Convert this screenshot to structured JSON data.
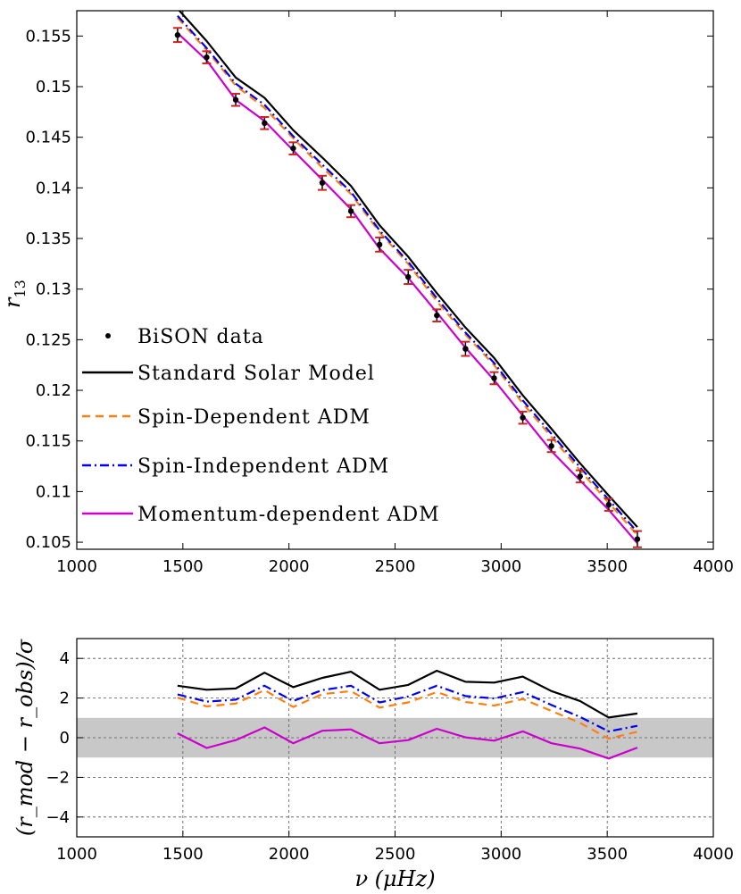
{
  "chart_data": [
    {
      "type": "line",
      "title": "",
      "xlabel": "",
      "ylabel": "r",
      "ylabel_sub": "13",
      "xlim": [
        1000,
        4000
      ],
      "ylim": [
        0.1043,
        0.1575
      ],
      "xticks": [
        1000,
        1500,
        2000,
        2500,
        3000,
        3500,
        4000
      ],
      "xtick_labels": [
        "1000",
        "1500",
        "2000",
        "2500",
        "3000",
        "3500",
        "4000"
      ],
      "yticks": [
        0.105,
        0.11,
        0.115,
        0.12,
        0.125,
        0.13,
        0.135,
        0.14,
        0.145,
        0.15,
        0.155
      ],
      "ytick_labels": [
        "0.105",
        "0.11",
        "0.115",
        "0.12",
        "0.125",
        "0.13",
        "0.135",
        "0.14",
        "0.145",
        "0.15",
        "0.155"
      ],
      "grid": false,
      "legend_position": "lower-left",
      "x": [
        1475,
        1612,
        1749,
        1885,
        2020,
        2157,
        2292,
        2427,
        2562,
        2697,
        2832,
        2967,
        3102,
        3237,
        3372,
        3507,
        3642
      ],
      "observations": {
        "name": "BiSON data",
        "color": "#000000",
        "error_bar_color": "#cc2222",
        "values": [
          0.1551,
          0.1529,
          0.1487,
          0.1464,
          0.1439,
          0.1405,
          0.1377,
          0.1344,
          0.1312,
          0.1274,
          0.1241,
          0.1212,
          0.1173,
          0.1145,
          0.1115,
          0.1087,
          0.1053
        ],
        "errors": [
          0.0007,
          0.0006,
          0.0006,
          0.0006,
          0.0006,
          0.0007,
          0.0006,
          0.0007,
          0.0007,
          0.0006,
          0.0007,
          0.0006,
          0.0006,
          0.0006,
          0.0006,
          0.0006,
          0.0008
        ]
      },
      "series": [
        {
          "name": "Standard Solar Model",
          "color": "#000000",
          "dash": "solid",
          "values": [
            0.1577,
            0.1545,
            0.1509,
            0.1489,
            0.1457,
            0.143,
            0.1402,
            0.1363,
            0.1332,
            0.1296,
            0.1262,
            0.1232,
            0.1195,
            0.1162,
            0.1128,
            0.1096,
            0.1065
          ]
        },
        {
          "name": "Spin-Dependent ADM",
          "color": "#ff7f0e",
          "dash": "dashed",
          "values": [
            0.1568,
            0.1536,
            0.1501,
            0.1479,
            0.1449,
            0.142,
            0.1394,
            0.1356,
            0.1325,
            0.1288,
            0.1255,
            0.1225,
            0.1187,
            0.1154,
            0.1121,
            0.1089,
            0.1057
          ]
        },
        {
          "name": "Spin-Independent ADM",
          "color": "#0000ee",
          "dash": "dashdot",
          "values": [
            0.157,
            0.1538,
            0.1503,
            0.1482,
            0.1451,
            0.1423,
            0.1396,
            0.1358,
            0.1327,
            0.1291,
            0.1257,
            0.1227,
            0.119,
            0.1157,
            0.1124,
            0.1092,
            0.106
          ]
        },
        {
          "name": "Momentum-dependent ADM",
          "color": "#cc00cc",
          "dash": "solid",
          "values": [
            0.1553,
            0.1526,
            0.1487,
            0.1466,
            0.1437,
            0.1408,
            0.1379,
            0.134,
            0.1311,
            0.1277,
            0.1242,
            0.121,
            0.1175,
            0.114,
            0.1111,
            0.1082,
            0.1049
          ]
        }
      ]
    },
    {
      "type": "line",
      "title": "",
      "xlabel": "ν (μHz)",
      "ylabel": "(r_mod − r_obs)/σ",
      "xlim": [
        1000,
        4000
      ],
      "ylim": [
        -5,
        5
      ],
      "xticks": [
        1000,
        1500,
        2000,
        2500,
        3000,
        3500,
        4000
      ],
      "xtick_labels": [
        "1000",
        "1500",
        "2000",
        "2500",
        "3000",
        "3500",
        "4000"
      ],
      "yticks": [
        -4,
        -2,
        0,
        2,
        4
      ],
      "ytick_labels": [
        "−4",
        "−2",
        "0",
        "2",
        "4"
      ],
      "grid": true,
      "shaded_band": {
        "from": -1,
        "to": 1,
        "color": "#c8c8c8"
      },
      "x": [
        1475,
        1612,
        1749,
        1885,
        2020,
        2157,
        2292,
        2427,
        2562,
        2697,
        2832,
        2967,
        3102,
        3237,
        3372,
        3507,
        3642
      ],
      "series": [
        {
          "name": "Standard Solar Model",
          "color": "#000000",
          "dash": "solid",
          "values": [
            2.62,
            2.42,
            2.48,
            3.28,
            2.55,
            3.02,
            3.33,
            2.42,
            2.66,
            3.38,
            2.82,
            2.78,
            3.08,
            2.35,
            1.85,
            1.02,
            1.22
          ]
        },
        {
          "name": "Spin-Dependent ADM",
          "color": "#ff7f0e",
          "dash": "dashed",
          "values": [
            2.02,
            1.58,
            1.72,
            2.4,
            1.55,
            2.2,
            2.35,
            1.52,
            1.78,
            2.3,
            1.8,
            1.62,
            1.95,
            1.35,
            0.75,
            -0.05,
            0.3
          ]
        },
        {
          "name": "Spin-Independent ADM",
          "color": "#0000ee",
          "dash": "dashdot",
          "values": [
            2.18,
            1.82,
            1.92,
            2.62,
            1.85,
            2.4,
            2.62,
            1.78,
            2.08,
            2.62,
            2.1,
            1.98,
            2.3,
            1.65,
            1.05,
            0.32,
            0.6
          ]
        },
        {
          "name": "Momentum-dependent ADM",
          "color": "#cc00cc",
          "dash": "solid",
          "values": [
            0.22,
            -0.52,
            -0.12,
            0.52,
            -0.28,
            0.35,
            0.42,
            -0.28,
            -0.12,
            0.45,
            0.02,
            -0.15,
            0.32,
            -0.28,
            -0.55,
            -1.05,
            -0.5
          ]
        }
      ]
    }
  ]
}
